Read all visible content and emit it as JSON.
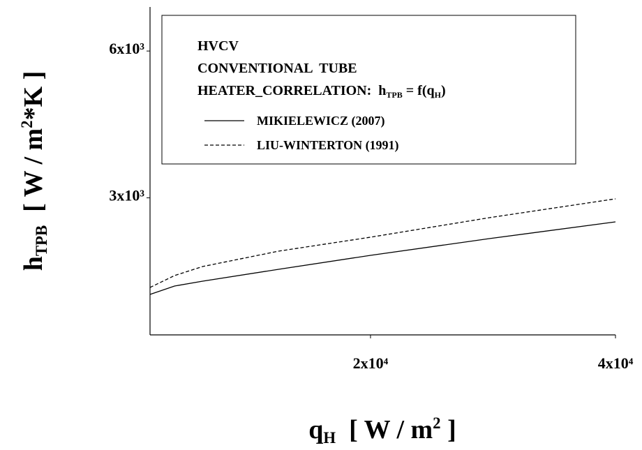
{
  "chart_data": {
    "type": "line",
    "x_label": [
      {
        "text": "q"
      },
      {
        "text": "H",
        "script": "sub"
      },
      {
        "text": "  [ W / m"
      },
      {
        "text": "2",
        "script": "super"
      },
      {
        "text": " ]"
      }
    ],
    "y_label": [
      {
        "text": "h"
      },
      {
        "text": "TPB",
        "script": "sub"
      },
      {
        "text": "  [ W / m"
      },
      {
        "text": "2",
        "script": "super"
      },
      {
        "text": "*K ]"
      }
    ],
    "legend_notes": [
      [
        {
          "text": "HVCV"
        }
      ],
      [
        {
          "text": "CONVENTIONAL  TUBE"
        }
      ],
      [
        {
          "text": "HEATER_CORRELATION:  h"
        },
        {
          "text": "TPB",
          "script": "sub"
        },
        {
          "text": " = f(q"
        },
        {
          "text": "H",
          "script": "sub"
        },
        {
          "text": ")"
        }
      ]
    ],
    "x": [
      2000,
      4000,
      6300,
      12500,
      20000,
      29700,
      40000
    ],
    "series": [
      {
        "name": "MIKIELEWICZ (2007)",
        "color": "#000000",
        "dashed": false,
        "values": [
          1027,
          1198,
          1298,
          1540,
          1825,
          2167,
          2509
        ]
      },
      {
        "name": "LIU-WINTERTON (1991)",
        "color": "#000000",
        "dashed": true,
        "values": [
          1169,
          1412,
          1597,
          1911,
          2196,
          2595,
          2980
        ]
      }
    ],
    "xlim": [
      2000,
      40000
    ],
    "ylim": [
      200,
      6900
    ],
    "xticks": [
      {
        "value": 20000,
        "label": "2x10⁴"
      },
      {
        "value": 40000,
        "label": "4x10⁴"
      }
    ],
    "yticks": [
      {
        "value": 3000,
        "label": "3x10³"
      },
      {
        "value": 6000,
        "label": "6x10³"
      }
    ],
    "grid": false
  }
}
